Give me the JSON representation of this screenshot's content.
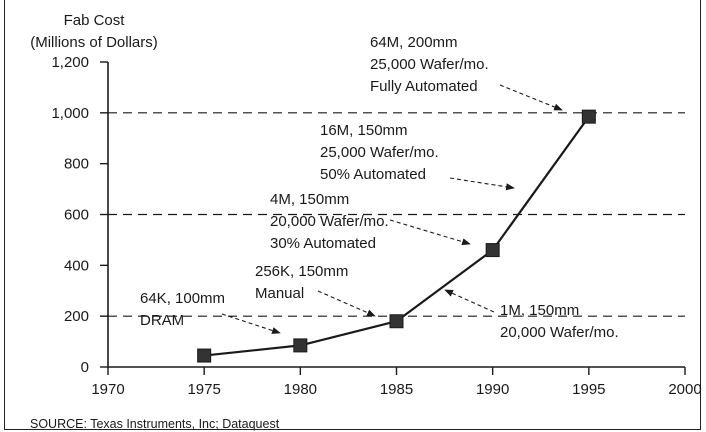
{
  "chart_data": {
    "type": "line",
    "ylabel_line1": "Fab Cost",
    "ylabel_line2": "(Millions of Dollars)",
    "xlabel": "",
    "x_ticks": [
      "1970",
      "1975",
      "1980",
      "1985",
      "1990",
      "1995",
      "2000"
    ],
    "y_ticks": [
      "0",
      "200",
      "400",
      "600",
      "800",
      "1,000",
      "1,200"
    ],
    "xlim": [
      1970,
      2000
    ],
    "ylim": [
      0,
      1200
    ],
    "series": [
      {
        "points": [
          {
            "x": 1975,
            "y": 45
          },
          {
            "x": 1980,
            "y": 85
          },
          {
            "x": 1985,
            "y": 180
          },
          {
            "x": 1990,
            "y": 460
          },
          {
            "x": 1995,
            "y": 985
          }
        ]
      }
    ],
    "reference_lines": [
      200,
      600,
      1000
    ],
    "annotations": [
      {
        "lines": [
          "64K, 100mm",
          "DRAM"
        ],
        "target_x": 1980,
        "target_y": 85
      },
      {
        "lines": [
          "256K, 150mm",
          "Manual"
        ],
        "target_x": 1985,
        "target_y": 180
      },
      {
        "lines": [
          "1M, 150mm",
          "20,000 Wafer/mo."
        ],
        "target_x": 1987.8,
        "target_y": 290
      },
      {
        "lines": [
          "4M, 150mm",
          "20,000 Wafer/mo.",
          "30% Automated"
        ],
        "target_x": 1990,
        "target_y": 460
      },
      {
        "lines": [
          "16M, 150mm",
          "25,000 Wafer/mo.",
          "50% Automated"
        ],
        "target_x": 1992.8,
        "target_y": 700
      },
      {
        "lines": [
          "64M, 200mm",
          "25,000 Wafer/mo.",
          "Fully Automated"
        ],
        "target_x": 1995,
        "target_y": 985
      }
    ],
    "source": "SOURCE: Texas Instruments, Inc; Dataquest",
    "grid": false
  },
  "colors": {
    "ink": "#1a1a1a",
    "marker": "#333333"
  }
}
